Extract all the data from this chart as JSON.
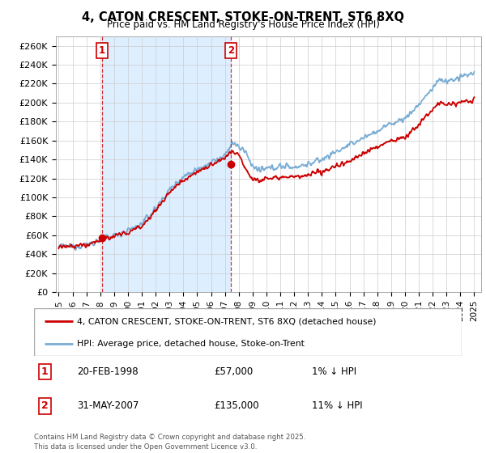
{
  "title": "4, CATON CRESCENT, STOKE-ON-TRENT, ST6 8XQ",
  "subtitle": "Price paid vs. HM Land Registry's House Price Index (HPI)",
  "ylim": [
    0,
    270000
  ],
  "yticks": [
    0,
    20000,
    40000,
    60000,
    80000,
    100000,
    120000,
    140000,
    160000,
    180000,
    200000,
    220000,
    240000,
    260000
  ],
  "ytick_labels": [
    "£0",
    "£20K",
    "£40K",
    "£60K",
    "£80K",
    "£100K",
    "£120K",
    "£140K",
    "£160K",
    "£180K",
    "£200K",
    "£220K",
    "£240K",
    "£260K"
  ],
  "sale1_date": "20-FEB-1998",
  "sale1_price": 57000,
  "sale1_hpi_diff": "1% ↓ HPI",
  "sale2_date": "31-MAY-2007",
  "sale2_price": 135000,
  "sale2_hpi_diff": "11% ↓ HPI",
  "legend_line1": "4, CATON CRESCENT, STOKE-ON-TRENT, ST6 8XQ (detached house)",
  "legend_line2": "HPI: Average price, detached house, Stoke-on-Trent",
  "copyright": "Contains HM Land Registry data © Crown copyright and database right 2025.\nThis data is licensed under the Open Government Licence v3.0.",
  "hpi_color": "#7aadd4",
  "price_color": "#cc0000",
  "chart_bg": "#ffffff",
  "shade_color": "#ddeeff",
  "grid_color": "#cccccc",
  "sale1_x_year": 1998.13,
  "sale2_x_year": 2007.42,
  "xlim_start": 1994.8,
  "xlim_end": 2025.5
}
